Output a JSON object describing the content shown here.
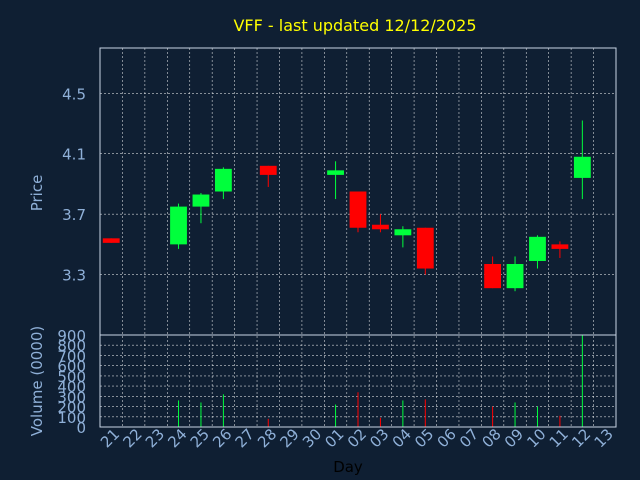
{
  "chart_data": {
    "type": "candlestick",
    "title": "VFF - last updated 12/12/2025",
    "xlabel": "Day",
    "price_panel": {
      "ylabel": "Price",
      "ylim": [
        2.9,
        4.8
      ],
      "yticks": [
        "3.3",
        "3.7",
        "4.1",
        "4.5"
      ],
      "ytick_values": [
        3.3,
        3.7,
        4.1,
        4.5
      ]
    },
    "volume_panel": {
      "ylabel": "Volume (0000)",
      "ylim": [
        0,
        900
      ],
      "yticks": [
        "0",
        "100",
        "200",
        "300",
        "400",
        "500",
        "600",
        "700",
        "800",
        "900"
      ],
      "ytick_values": [
        0,
        100,
        200,
        300,
        400,
        500,
        600,
        700,
        800,
        900
      ]
    },
    "days": [
      "21",
      "22",
      "23",
      "24",
      "25",
      "26",
      "27",
      "28",
      "29",
      "30",
      "01",
      "02",
      "03",
      "04",
      "05",
      "06",
      "07",
      "08",
      "09",
      "10",
      "11",
      "12",
      "13"
    ],
    "candles": [
      {
        "day": "21",
        "open": 3.54,
        "high": 3.54,
        "low": 3.51,
        "close": 3.51,
        "volume": 0
      },
      {
        "day": "24",
        "open": 3.5,
        "high": 3.77,
        "low": 3.47,
        "close": 3.75,
        "volume": 260
      },
      {
        "day": "25",
        "open": 3.75,
        "high": 3.84,
        "low": 3.64,
        "close": 3.83,
        "volume": 240
      },
      {
        "day": "26",
        "open": 3.85,
        "high": 4.01,
        "low": 3.8,
        "close": 4.0,
        "volume": 320
      },
      {
        "day": "28",
        "open": 4.02,
        "high": 4.02,
        "low": 3.88,
        "close": 3.96,
        "volume": 80
      },
      {
        "day": "01",
        "open": 3.96,
        "high": 4.05,
        "low": 3.8,
        "close": 3.99,
        "volume": 220
      },
      {
        "day": "02",
        "open": 3.85,
        "high": 3.85,
        "low": 3.58,
        "close": 3.61,
        "volume": 340
      },
      {
        "day": "03",
        "open": 3.63,
        "high": 3.7,
        "low": 3.58,
        "close": 3.6,
        "volume": 90
      },
      {
        "day": "04",
        "open": 3.56,
        "high": 3.62,
        "low": 3.48,
        "close": 3.6,
        "volume": 260
      },
      {
        "day": "05",
        "open": 3.61,
        "high": 3.61,
        "low": 3.3,
        "close": 3.34,
        "volume": 270
      },
      {
        "day": "08",
        "open": 3.37,
        "high": 3.42,
        "low": 3.21,
        "close": 3.21,
        "volume": 200
      },
      {
        "day": "09",
        "open": 3.21,
        "high": 3.42,
        "low": 3.19,
        "close": 3.37,
        "volume": 240
      },
      {
        "day": "10",
        "open": 3.39,
        "high": 3.56,
        "low": 3.34,
        "close": 3.55,
        "volume": 200
      },
      {
        "day": "11",
        "open": 3.5,
        "high": 3.52,
        "low": 3.41,
        "close": 3.47,
        "volume": 110
      },
      {
        "day": "12",
        "open": 3.94,
        "high": 4.32,
        "low": 3.8,
        "close": 4.08,
        "volume": 900
      }
    ],
    "colors": {
      "background": "#0f1f33",
      "up": "#00ff3c",
      "down": "#ff0000",
      "title": "#ffff00",
      "axis_text": "#8fb0d8",
      "xlabel": "#000000",
      "grid": "#ffffff",
      "frame": "#c9d6e6"
    }
  }
}
